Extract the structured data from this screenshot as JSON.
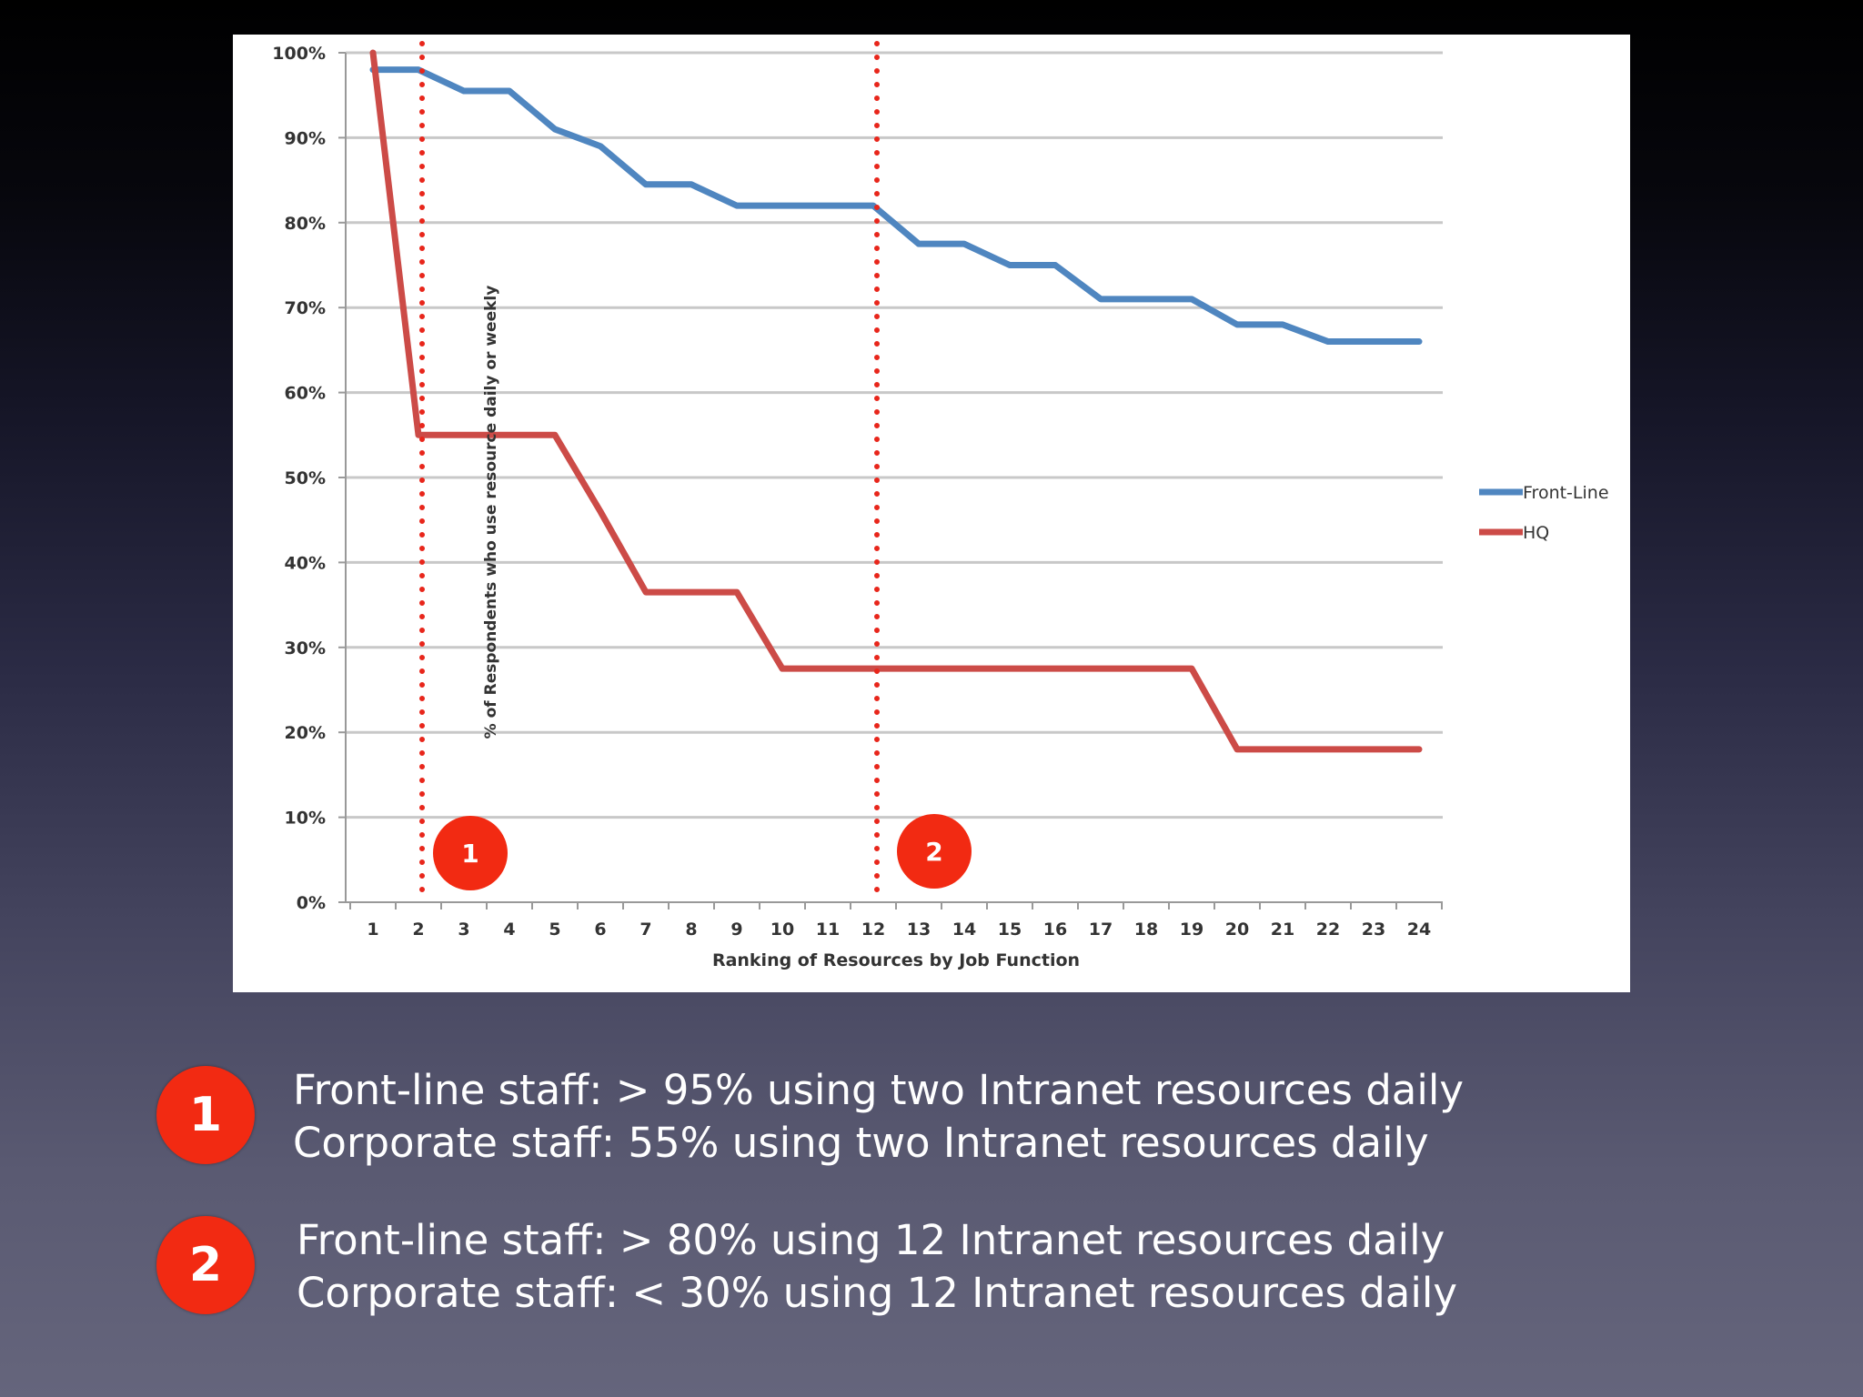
{
  "chart_data": {
    "type": "line",
    "title": "",
    "xlabel": "Ranking of Resources by Job Function",
    "ylabel": "% of Respondents who use resource daily or weekly",
    "x": [
      1,
      2,
      3,
      4,
      5,
      6,
      7,
      8,
      9,
      10,
      11,
      12,
      13,
      14,
      15,
      16,
      17,
      18,
      19,
      20,
      21,
      22,
      23,
      24
    ],
    "ylim": [
      0,
      100
    ],
    "y_ticks": [
      "0%",
      "10%",
      "20%",
      "30%",
      "40%",
      "50%",
      "60%",
      "70%",
      "80%",
      "90%",
      "100%"
    ],
    "grid": true,
    "legend_position": "right",
    "series": [
      {
        "name": "Front-Line",
        "color": "#4f86c0",
        "values": [
          98,
          98,
          95.5,
          95.5,
          91,
          89,
          84.5,
          84.5,
          82,
          82,
          82,
          82,
          77.5,
          77.5,
          75,
          75,
          71,
          71,
          71,
          68,
          68,
          66,
          66,
          66
        ]
      },
      {
        "name": "HQ",
        "color": "#cc4b47",
        "values": [
          100,
          55,
          55,
          55,
          55,
          46,
          36.5,
          36.5,
          36.5,
          27.5,
          27.5,
          27.5,
          27.5,
          27.5,
          27.5,
          27.5,
          27.5,
          27.5,
          27.5,
          18,
          18,
          18,
          18,
          18
        ]
      }
    ],
    "markers": [
      {
        "x": 2,
        "label": "1",
        "color": "#e8261b"
      },
      {
        "x": 12,
        "label": "2",
        "color": "#e8261b"
      }
    ]
  },
  "notes": [
    {
      "badge": "1",
      "line1": "Front-line staff: > 95% using two Intranet resources daily",
      "line2": "Corporate staff: 55% using two Intranet resources daily"
    },
    {
      "badge": "2",
      "line1": "Front-line staff: > 80% using 12 Intranet resources daily",
      "line2": "Corporate staff: < 30% using 12 Intranet resources daily"
    }
  ],
  "colors": {
    "badge": "#f22a12",
    "marker_line": "#e8261b"
  }
}
